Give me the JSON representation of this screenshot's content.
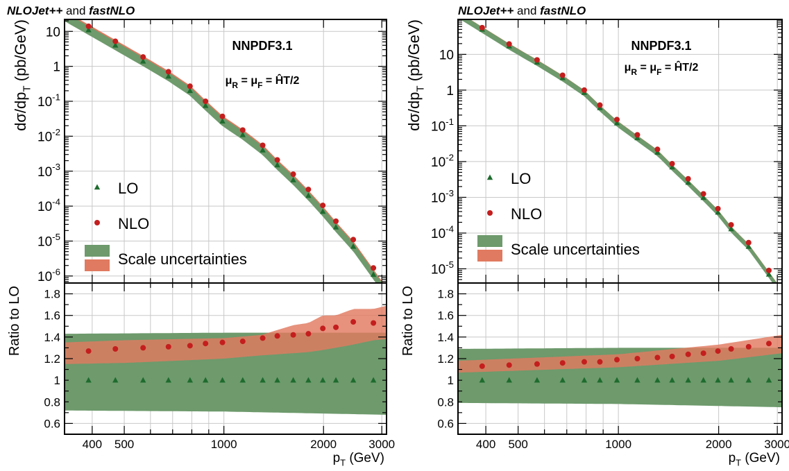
{
  "header_generator": "NLOJet++",
  "header_and": " and ",
  "header_tool": "fastNLO",
  "colors": {
    "lo": "#1e6b2e",
    "nlo": "#c41e1e",
    "lo_band": "#6e9a6c",
    "nlo_band": "#e07a60"
  },
  "chart_data": [
    {
      "type": "scatter",
      "pdf_label": "NNPDF3.1",
      "scale_label": "μR = μF = ĤT/2",
      "ylabel": "dσ/dpT (pb/GeV)",
      "ratio_ylabel": "Ratio to LO",
      "xlabel": "pT (GeV)",
      "xscale": "log",
      "yscale": "log",
      "xlim": [
        330,
        3100
      ],
      "ylim": [
        6.3e-07,
        22
      ],
      "ratio_ylim": [
        0.5,
        1.9
      ],
      "x_ticks": [
        400,
        500,
        1000,
        2000,
        3000
      ],
      "y_ticks": [
        1e-06,
        1e-05,
        0.0001,
        0.001,
        0.01,
        0.1,
        1,
        10
      ],
      "y_tick_labels": [
        "10^-6",
        "10^-5",
        "10^-4",
        "10^-3",
        "10^-2",
        "10^-1",
        "1",
        "10"
      ],
      "ratio_ticks": [
        0.6,
        0.8,
        1,
        1.2,
        1.4,
        1.6,
        1.8
      ],
      "ratio_tick_labels": [
        "0.6",
        "0.8",
        "1",
        "1.2",
        "1.4",
        "1.6",
        "1.8"
      ],
      "legend": [
        "LO",
        "NLO",
        "Scale uncertainties",
        "Scale uncertainties"
      ],
      "legend_position": "bottom-left",
      "grid": true,
      "x": [
        390,
        470,
        570,
        680,
        790,
        880,
        990,
        1140,
        1310,
        1450,
        1620,
        1800,
        1990,
        2180,
        2460,
        2830
      ],
      "series": [
        {
          "name": "LO",
          "marker": "triangle",
          "values": [
            11,
            4,
            1.4,
            0.52,
            0.2,
            0.075,
            0.027,
            0.011,
            0.004,
            0.0015,
            0.00056,
            0.0002,
            7e-05,
            2.5e-05,
            7e-06,
            1.1e-06
          ]
        },
        {
          "name": "NLO",
          "marker": "circle",
          "values": [
            14,
            5.2,
            1.85,
            0.7,
            0.27,
            0.1,
            0.037,
            0.015,
            0.0055,
            0.0021,
            0.00082,
            0.0003,
            0.000105,
            3.7e-05,
            1.1e-05,
            1.7e-06
          ]
        }
      ],
      "ratio_lo_values": [
        1,
        1,
        1,
        1,
        1,
        1,
        1,
        1,
        1,
        1,
        1,
        1,
        1,
        1,
        1,
        1
      ],
      "ratio_nlo_values": [
        1.27,
        1.29,
        1.3,
        1.31,
        1.32,
        1.34,
        1.35,
        1.36,
        1.39,
        1.41,
        1.42,
        1.43,
        1.48,
        1.49,
        1.54,
        1.53
      ],
      "ratio_lo_band": {
        "x": [
          330,
          1000,
          3100
        ],
        "lo": [
          0.72,
          0.71,
          0.68
        ],
        "hi": [
          1.43,
          1.44,
          1.44
        ]
      },
      "ratio_nlo_band": {
        "x": [
          330,
          500,
          1000,
          1300,
          1620,
          1800,
          1990,
          2180,
          2460,
          2830,
          3100
        ],
        "lo": [
          1.15,
          1.16,
          1.2,
          1.23,
          1.25,
          1.26,
          1.28,
          1.3,
          1.33,
          1.37,
          1.38
        ],
        "hi": [
          1.35,
          1.37,
          1.39,
          1.42,
          1.51,
          1.53,
          1.6,
          1.6,
          1.66,
          1.66,
          1.69
        ]
      },
      "main_lo_band_factors": [
        0.72,
        1.43
      ],
      "main_nlo_band_factors": [
        1.18,
        1.42
      ]
    },
    {
      "type": "scatter",
      "pdf_label": "NNPDF3.1",
      "scale_label": "μR = μF = ĤT/2",
      "ylabel": "dσ/dpT (pb/GeV)",
      "ratio_ylabel": "Ratio to LO",
      "xlabel": "pT (GeV)",
      "xscale": "log",
      "yscale": "log",
      "xlim": [
        330,
        3100
      ],
      "ylim": [
        4e-06,
        95
      ],
      "ratio_ylim": [
        0.5,
        1.9
      ],
      "x_ticks": [
        400,
        500,
        1000,
        2000,
        3000
      ],
      "y_ticks": [
        1e-05,
        0.0001,
        0.001,
        0.01,
        0.1,
        1,
        10
      ],
      "y_tick_labels": [
        "10^-5",
        "10^-4",
        "10^-3",
        "10^-2",
        "10^-1",
        "1",
        "10"
      ],
      "ratio_ticks": [
        0.6,
        0.8,
        1,
        1.2,
        1.4,
        1.6,
        1.8
      ],
      "ratio_tick_labels": [
        "0.6",
        "0.8",
        "1",
        "1.2",
        "1.4",
        "1.6",
        "1.8"
      ],
      "legend": [
        "LO",
        "NLO",
        "Scale uncertainties",
        "Scale uncertainties"
      ],
      "legend_position": "bottom-left",
      "grid": true,
      "x": [
        390,
        470,
        570,
        680,
        790,
        880,
        990,
        1140,
        1310,
        1450,
        1620,
        1800,
        1990,
        2180,
        2460,
        2830
      ],
      "series": [
        {
          "name": "LO",
          "marker": "triangle",
          "values": [
            50,
            17,
            6,
            2.2,
            0.85,
            0.32,
            0.12,
            0.046,
            0.018,
            0.007,
            0.0026,
            0.00098,
            0.00038,
            0.00013,
            4.2e-05,
            7e-06
          ]
        },
        {
          "name": "NLO",
          "marker": "circle",
          "values": [
            56,
            19.5,
            7,
            2.6,
            1,
            0.38,
            0.15,
            0.056,
            0.022,
            0.0087,
            0.0033,
            0.00125,
            0.00048,
            0.00017,
            5.4e-05,
            9e-06
          ]
        }
      ],
      "ratio_lo_values": [
        1,
        1,
        1,
        1,
        1,
        1,
        1,
        1,
        1,
        1,
        1,
        1,
        1,
        1,
        1,
        1
      ],
      "ratio_nlo_values": [
        1.13,
        1.14,
        1.15,
        1.16,
        1.17,
        1.17,
        1.19,
        1.2,
        1.21,
        1.22,
        1.24,
        1.25,
        1.27,
        1.29,
        1.31,
        1.34
      ],
      "ratio_lo_band": {
        "x": [
          330,
          1000,
          3100
        ],
        "lo": [
          0.79,
          0.78,
          0.75
        ],
        "hi": [
          1.29,
          1.3,
          1.3
        ]
      },
      "ratio_nlo_band": {
        "x": [
          330,
          1000,
          2000,
          3100
        ],
        "lo": [
          1.07,
          1.12,
          1.18,
          1.25
        ],
        "hi": [
          1.18,
          1.24,
          1.33,
          1.42
        ]
      },
      "main_lo_band_factors": [
        0.79,
        1.29
      ],
      "main_nlo_band_factors": [
        1.07,
        1.18
      ]
    }
  ]
}
